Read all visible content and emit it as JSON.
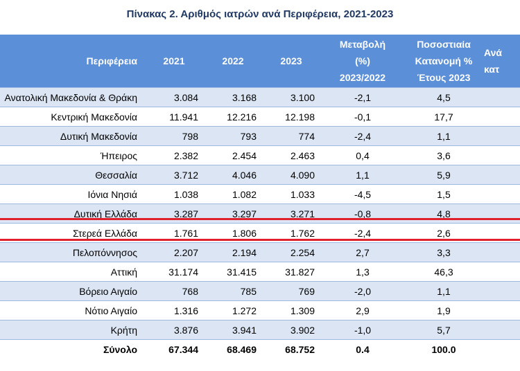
{
  "title": "Πίνακας 2. Αριθμός ιατρών ανά Περιφέρεια, 2021-2023",
  "headers": {
    "region": "Περιφέρεια",
    "y2021": "2021",
    "y2022": "2022",
    "y2023": "2023",
    "change_line1": "Μεταβολή",
    "change_line2": "(%)",
    "change_line3": "2023/2022",
    "share_line1": "Ποσοστιαία",
    "share_line2": "Κατανομή %",
    "share_line3": "Έτους 2023",
    "extra_line1": "Ανά",
    "extra_line2": "κατ"
  },
  "rows": [
    {
      "region": "Ανατολική Μακεδονία & Θράκη",
      "y2021": "3.084",
      "y2022": "3.168",
      "y2023": "3.100",
      "change": "-2,1",
      "share": "4,5"
    },
    {
      "region": "Κεντρική Μακεδονία",
      "y2021": "11.941",
      "y2022": "12.216",
      "y2023": "12.198",
      "change": "-0,1",
      "share": "17,7"
    },
    {
      "region": "Δυτική Μακεδονία",
      "y2021": "798",
      "y2022": "793",
      "y2023": "774",
      "change": "-2,4",
      "share": "1,1"
    },
    {
      "region": "Ήπειρος",
      "y2021": "2.382",
      "y2022": "2.454",
      "y2023": "2.463",
      "change": "0,4",
      "share": "3,6"
    },
    {
      "region": "Θεσσαλία",
      "y2021": "3.712",
      "y2022": "4.046",
      "y2023": "4.090",
      "change": "1,1",
      "share": "5,9"
    },
    {
      "region": "Ιόνια Νησιά",
      "y2021": "1.038",
      "y2022": "1.082",
      "y2023": "1.033",
      "change": "-4,5",
      "share": "1,5"
    },
    {
      "region": "Δυτική Ελλάδα",
      "y2021": "3.287",
      "y2022": "3.297",
      "y2023": "3.271",
      "change": "-0,8",
      "share": "4,8"
    },
    {
      "region": "Στερεά Ελλάδα",
      "y2021": "1.761",
      "y2022": "1.806",
      "y2023": "1.762",
      "change": "-2,4",
      "share": "2,6"
    },
    {
      "region": "Πελοπόννησος",
      "y2021": "2.207",
      "y2022": "2.194",
      "y2023": "2.254",
      "change": "2,7",
      "share": "3,3"
    },
    {
      "region": "Αττική",
      "y2021": "31.174",
      "y2022": "31.415",
      "y2023": "31.827",
      "change": "1,3",
      "share": "46,3"
    },
    {
      "region": "Βόρειο Αιγαίο",
      "y2021": "768",
      "y2022": "785",
      "y2023": "769",
      "change": "-2,0",
      "share": "1,1"
    },
    {
      "region": "Νότιο Αιγαίο",
      "y2021": "1.316",
      "y2022": "1.272",
      "y2023": "1.309",
      "change": "2,9",
      "share": "1,9"
    },
    {
      "region": "Κρήτη",
      "y2021": "3.876",
      "y2022": "3.941",
      "y2023": "3.902",
      "change": "-1,0",
      "share": "5,7"
    }
  ],
  "total": {
    "region": "Σύνολο",
    "y2021": "67.344",
    "y2022": "68.469",
    "y2023": "68.752",
    "change": "0,4",
    "share": "100,0"
  },
  "colors": {
    "header_bg": "#5b8fd8",
    "row_shade": "#dbe5f3",
    "highlight_line": "#e0202a",
    "title": "#1f3864"
  }
}
